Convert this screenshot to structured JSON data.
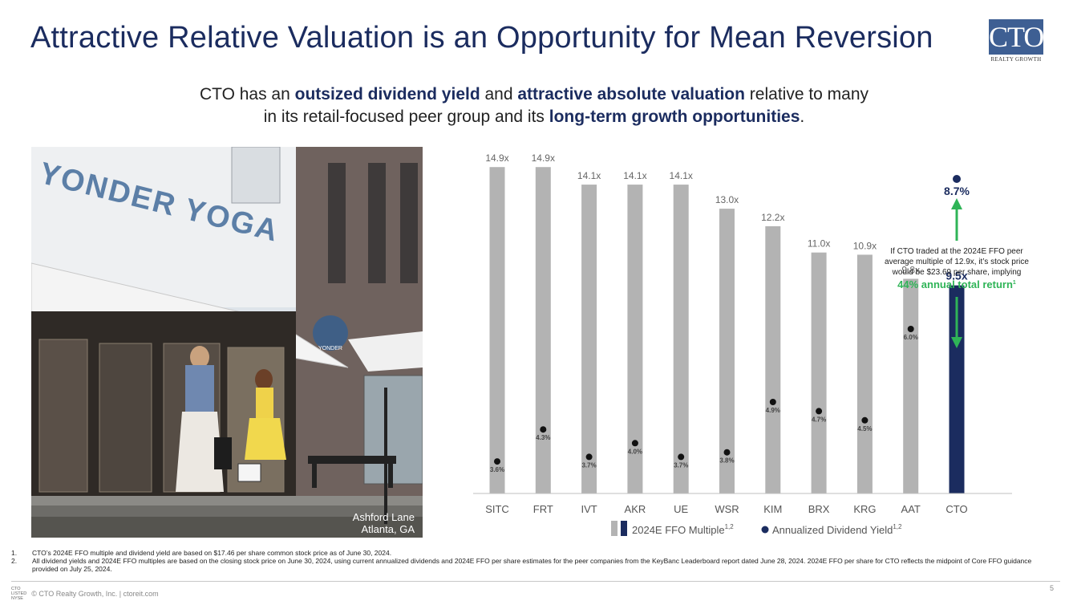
{
  "title": "Attractive Relative Valuation is an Opportunity for Mean Reversion",
  "logo": {
    "text": "CTO",
    "subtext": "REALTY GROWTH"
  },
  "subtitle": {
    "p1": "CTO has an ",
    "b1": "outsized dividend yield",
    "p2": " and ",
    "b2": "attractive absolute valuation",
    "p3": " relative to many",
    "p4": "in its retail-focused peer group and its ",
    "b3": "long-term growth opportunities",
    "p5": "."
  },
  "photo": {
    "sign_text": "YONDER YOGA",
    "hanging_sign": "YONDER",
    "caption_line1": "Ashford Lane",
    "caption_line2": "Atlanta, GA"
  },
  "chart_data": {
    "type": "bar",
    "categories": [
      "SITC",
      "FRT",
      "IVT",
      "AKR",
      "UE",
      "WSR",
      "KIM",
      "BRX",
      "KRG",
      "AAT",
      "CTO"
    ],
    "series": [
      {
        "name": "2024E FFO Multiple",
        "values": [
          14.9,
          14.9,
          14.1,
          14.1,
          14.1,
          13.0,
          12.2,
          11.0,
          10.9,
          9.8,
          9.5
        ]
      },
      {
        "name": "Annualized Dividend Yield",
        "values": [
          3.6,
          4.3,
          3.7,
          4.0,
          3.7,
          3.8,
          4.9,
          4.7,
          4.5,
          6.0,
          8.7
        ]
      }
    ],
    "bar_labels": [
      "14.9x",
      "14.9x",
      "14.1x",
      "14.1x",
      "14.1x",
      "13.0x",
      "12.2x",
      "11.0x",
      "10.9x",
      "9.8x",
      "9.5x"
    ],
    "yield_labels": [
      "3.6%",
      "4.3%",
      "3.7%",
      "4.0%",
      "3.7%",
      "3.8%",
      "4.9%",
      "4.7%",
      "4.5%",
      "6.0%",
      "8.7%"
    ],
    "highlight_category": "CTO",
    "colors": {
      "peer_bar": "#b3b3b3",
      "cto_bar": "#1b2c5f",
      "dot": "#111111",
      "arrow": "#2fb457",
      "return_text": "#2fb457"
    },
    "legend": {
      "bar_label": "2024E FFO Multiple",
      "bar_sup": "1,2",
      "dot_label": "Annualized Dividend Yield",
      "dot_sup": "1,2"
    },
    "annotation": {
      "line1": "If CTO traded at the 2024E FFO peer",
      "line2": "average multiple of 12.9x, it’s stock price",
      "line3": "would be $23.69 per share, implying",
      "highlight": "44% annual total return",
      "highlight_sup": "1"
    }
  },
  "footnotes": [
    {
      "num": "1.",
      "text": "CTO’s 2024E FFO multiple and dividend yield are based on $17.46 per share common stock price as of June 30, 2024."
    },
    {
      "num": "2.",
      "text": "All dividend yields and 2024E FFO multiples are based on the closing stock price on June 30, 2024, using current annualized dividends and 2024E FFO per share estimates for the peer companies from the KeyBanc Leaderboard report dated June 28, 2024. 2024E FFO per share for CTO reflects the midpoint of Core FFO guidance provided on July 25, 2024."
    }
  ],
  "footer": {
    "mini_line1": "CTO",
    "mini_line2": "LISTED",
    "mini_line3": "NYSE",
    "text": "© CTO Realty Growth, Inc. | ctoreit.com"
  },
  "page_number": "5"
}
